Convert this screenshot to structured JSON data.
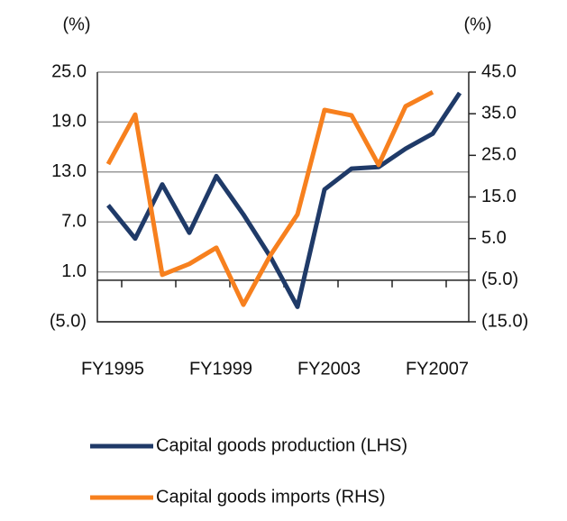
{
  "chart_data": {
    "type": "line",
    "y_label": "(%)",
    "y2_label": "(%)",
    "categories": [
      "FY1995",
      null,
      null,
      null,
      "FY1999",
      null,
      null,
      null,
      "FY2003",
      null,
      null,
      null,
      "FY2007",
      null
    ],
    "ylim": [
      -5,
      25
    ],
    "yticks": [
      {
        "value": 25,
        "label": "25.0"
      },
      {
        "value": 19,
        "label": "19.0"
      },
      {
        "value": 13,
        "label": "13.0"
      },
      {
        "value": 7,
        "label": "7.0"
      },
      {
        "value": 1,
        "label": "1.0"
      },
      {
        "value": -5,
        "label": "(5.0)"
      }
    ],
    "y2lim": [
      -15,
      45
    ],
    "y2ticks": [
      {
        "value": 45,
        "label": "45.0"
      },
      {
        "value": 35,
        "label": "35.0"
      },
      {
        "value": 25,
        "label": "25.0"
      },
      {
        "value": 15,
        "label": "15.0"
      },
      {
        "value": 5,
        "label": "5.0"
      },
      {
        "value": -5,
        "label": "(5.0)"
      },
      {
        "value": -15,
        "label": "(15.0)"
      }
    ],
    "grid": true,
    "series": [
      {
        "name": "Capital goods production (LHS)",
        "color": "#1f3a68",
        "values": [
          9.0,
          5.0,
          11.5,
          5.7,
          12.5,
          7.9,
          2.8,
          -3.2,
          10.9,
          13.4,
          13.6,
          15.8,
          17.6,
          22.5
        ]
      },
      {
        "name": "Capital goods imports (RHS)",
        "color": "#f7801e",
        "axis": "y2",
        "values": [
          22.9,
          34.8,
          -3.7,
          -1.1,
          2.8,
          -10.9,
          1.0,
          10.8,
          35.9,
          34.6,
          22.7,
          36.8,
          40.2,
          null
        ]
      }
    ]
  }
}
